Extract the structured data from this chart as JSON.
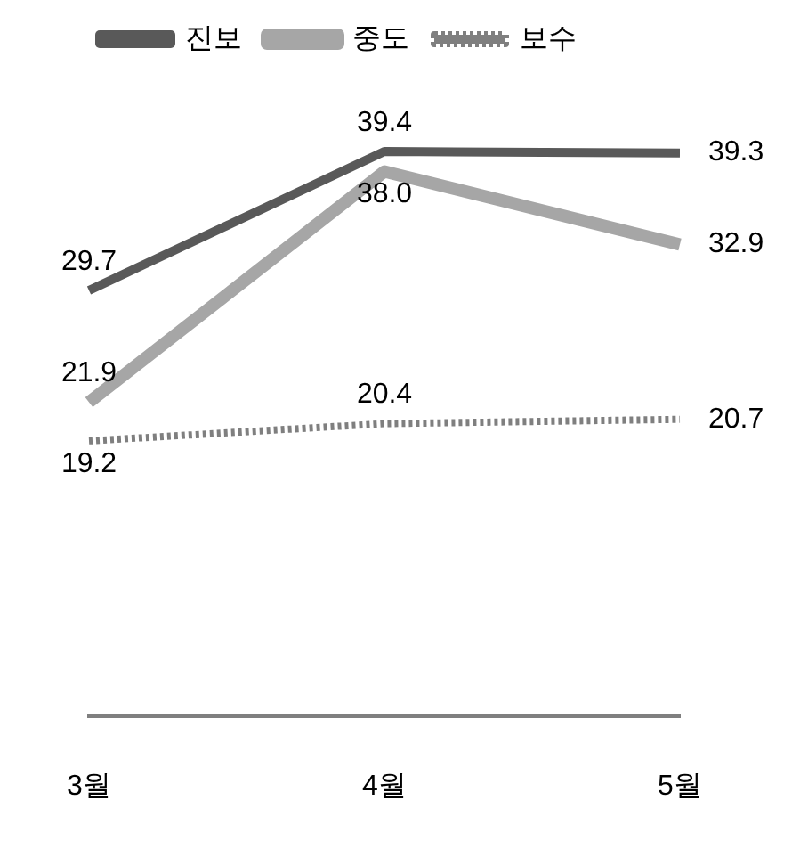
{
  "chart_data": {
    "type": "line",
    "categories": [
      "3월",
      "4월",
      "5월"
    ],
    "series": [
      {
        "name": "진보",
        "color": "#595959",
        "values": [
          29.7,
          39.4,
          39.3
        ],
        "value_labels": [
          "29.7",
          "39.4",
          "39.3"
        ],
        "line_style": "solid"
      },
      {
        "name": "중도",
        "color": "#a6a6a6",
        "values": [
          21.9,
          38.0,
          32.9
        ],
        "value_labels": [
          "21.9",
          "38.0",
          "32.9"
        ],
        "line_style": "solid"
      },
      {
        "name": "보수",
        "color": "#7f7f7f",
        "values": [
          19.2,
          20.4,
          20.7
        ],
        "value_labels": [
          "19.2",
          "20.4",
          "20.7"
        ],
        "line_style": "dotted"
      }
    ],
    "tick_labels": "x",
    "grid": false,
    "legend": "top",
    "marker": "none"
  }
}
